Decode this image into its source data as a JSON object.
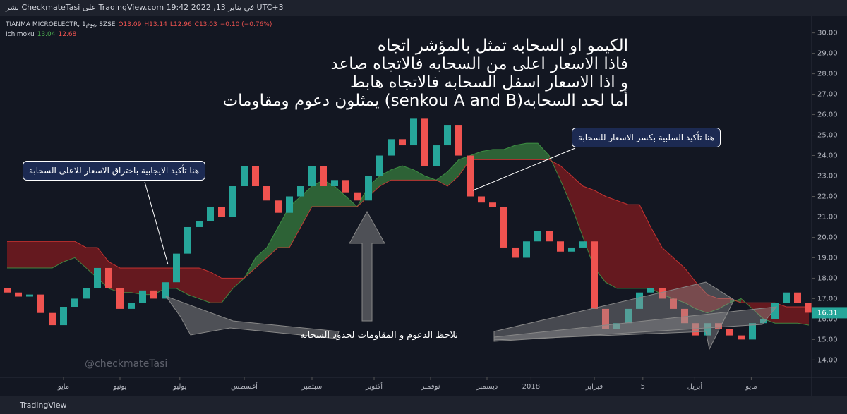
{
  "header": {
    "text": "نشر CheckmateTasi على TradingView.com في يناير 13, 2022 19:42 UTC+3"
  },
  "footer": {
    "brand": "TradingView"
  },
  "chart_data": {
    "type": "candlestick",
    "symbol": "TIANMA MICROELECTR, 1يوم, SZSE",
    "ohlc": [
      "O13.09",
      "H13.14",
      "L12.96",
      "C13.03",
      "−0.10 (−0.76%)"
    ],
    "indicator": "Ichimoku",
    "indicator_values": [
      "13.04",
      "12.68"
    ],
    "annotation": [
      "الكيمو او السحابه تمثل بالمؤشر اتجاه",
      "فاذا الاسعار اعلى من السحابه فالاتجاه صاعد",
      "و اذا الاسعار اسفل السحابه فالاتجاه هابط",
      "أما لحد السحابه(senkou A and B) يمثلون دعوم ومقاومات"
    ],
    "callouts": [
      "هنا تأكيد الايجابية باختراق الاسعار للاعلى السحابة",
      "هنا تأكيد السلبية بكسر الاسعار للسحابة",
      "نلاحظ الدعوم و المقاومات لحدود السحابه"
    ],
    "watermark": "@checkmateTasi",
    "up_color": "#26a69a",
    "down_color": "#ef5350",
    "candles": {
      "open": [
        17.5,
        17.3,
        17.1,
        17.2,
        16.3,
        15.7,
        16.6,
        17.0,
        17.5,
        18.5,
        17.5,
        16.5,
        16.8,
        17.4,
        17.0,
        17.8,
        19.2,
        20.5,
        20.8,
        21.5,
        21.0,
        22.5,
        23.5,
        22.5,
        21.8,
        21.2,
        22.0,
        22.5,
        23.5,
        22.5,
        22.8,
        22.2,
        21.8,
        23.0,
        24.0,
        24.8,
        24.5,
        25.8,
        23.5,
        24.5,
        25.5,
        24.0,
        22.0,
        21.7,
        21.5,
        19.5,
        19.0,
        19.8,
        20.3,
        19.8,
        19.3,
        19.5,
        19.8,
        16.5,
        15.5,
        15.8,
        16.5,
        17.3,
        17.5,
        17.0,
        16.5,
        15.8,
        15.2,
        15.8,
        15.5,
        15.2,
        15.0,
        15.8,
        16.0,
        16.8,
        17.3,
        16.8
      ],
      "close": [
        17.3,
        17.1,
        17.2,
        16.3,
        15.7,
        16.6,
        17.0,
        17.5,
        18.5,
        17.5,
        16.5,
        16.8,
        17.4,
        17.0,
        17.8,
        19.2,
        20.5,
        20.8,
        21.5,
        21.0,
        22.5,
        23.5,
        22.5,
        21.8,
        21.2,
        22.0,
        22.5,
        23.5,
        22.5,
        22.8,
        22.2,
        21.8,
        23.0,
        24.0,
        24.8,
        24.5,
        25.8,
        23.5,
        24.5,
        25.5,
        24.0,
        22.0,
        21.7,
        21.5,
        19.5,
        19.0,
        19.8,
        20.3,
        19.8,
        19.3,
        19.5,
        19.8,
        16.5,
        15.5,
        15.8,
        16.5,
        17.3,
        17.5,
        17.0,
        16.5,
        15.8,
        15.2,
        15.8,
        15.5,
        15.2,
        15.0,
        15.8,
        16.0,
        16.8,
        17.3,
        16.8,
        16.31
      ]
    },
    "span_a": {
      "color": "#43a047",
      "values": [
        18.5,
        18.5,
        18.5,
        18.5,
        18.5,
        18.8,
        19.0,
        18.5,
        18.0,
        17.5,
        17.3,
        17.3,
        17.2,
        17.2,
        17.5,
        17.5,
        17.2,
        17.0,
        16.8,
        16.8,
        17.5,
        18.0,
        19.0,
        19.5,
        20.5,
        21.5,
        22.0,
        22.5,
        22.8,
        22.5,
        22.0,
        21.5,
        22.5,
        23.0,
        23.3,
        23.5,
        23.3,
        23.0,
        22.8,
        23.2,
        23.8,
        24.0,
        24.2,
        24.3,
        24.3,
        24.5,
        24.6,
        24.6,
        24.0,
        22.8,
        21.5,
        20.0,
        18.5,
        17.8,
        17.5,
        17.5,
        17.5,
        17.5,
        17.2,
        17.0,
        16.8,
        16.5,
        16.3,
        16.5,
        16.8,
        17.0,
        16.5,
        16.0,
        15.8,
        15.8,
        15.8,
        15.7
      ]
    },
    "span_b": {
      "color": "#e53935",
      "values": [
        19.8,
        19.8,
        19.8,
        19.8,
        19.8,
        19.8,
        19.8,
        19.5,
        19.5,
        18.8,
        18.5,
        18.5,
        18.5,
        18.5,
        18.5,
        18.5,
        18.5,
        18.5,
        18.3,
        18.0,
        18.0,
        18.0,
        18.5,
        19.0,
        19.5,
        19.5,
        20.5,
        21.5,
        21.5,
        21.5,
        21.5,
        21.5,
        22.0,
        22.5,
        22.8,
        22.8,
        22.8,
        22.8,
        22.8,
        22.5,
        23.0,
        23.8,
        23.8,
        23.8,
        23.8,
        23.8,
        23.8,
        23.8,
        23.8,
        23.5,
        23.0,
        22.5,
        22.3,
        22.0,
        21.8,
        21.6,
        21.6,
        20.5,
        19.5,
        19.0,
        18.5,
        17.8,
        17.2,
        17.0,
        17.0,
        16.8,
        16.8,
        16.8,
        16.8,
        16.6,
        16.6,
        16.6
      ]
    },
    "last_price": 16.31,
    "xlim": [
      -0.625,
      71.25
    ],
    "xticks": [
      {
        "value": 5,
        "label": "مايو"
      },
      {
        "value": 10,
        "label": "يونيو"
      },
      {
        "value": 15.3,
        "label": "يوليو"
      },
      {
        "value": 21,
        "label": "أغسطس"
      },
      {
        "value": 27,
        "label": "سبتمبر"
      },
      {
        "value": 32.5,
        "label": "أكتوبر"
      },
      {
        "value": 37.5,
        "label": "نوفمبر"
      },
      {
        "value": 42.5,
        "label": "ديسمبر"
      },
      {
        "value": 46.4,
        "label": "2018"
      },
      {
        "value": 52,
        "label": "فبراير"
      },
      {
        "value": 56.3,
        "label": "5"
      },
      {
        "value": 60.9,
        "label": "أبريل"
      },
      {
        "value": 65.9,
        "label": "مايو"
      }
    ],
    "ylim": [
      13.15,
      30.85
    ],
    "yticks": [
      {
        "value": 14,
        "label": "14.00"
      },
      {
        "value": 15,
        "label": "15.00"
      },
      {
        "value": 16,
        "label": "16.00"
      },
      {
        "value": 17,
        "label": "17.00"
      },
      {
        "value": 18,
        "label": "18.00"
      },
      {
        "value": 19,
        "label": "19.00"
      },
      {
        "value": 20,
        "label": "20.00"
      },
      {
        "value": 21,
        "label": "21.00"
      },
      {
        "value": 22,
        "label": "22.00"
      },
      {
        "value": 23,
        "label": "23.00"
      },
      {
        "value": 24,
        "label": "24.00"
      },
      {
        "value": 25,
        "label": "25.00"
      },
      {
        "value": 26,
        "label": "26.00"
      },
      {
        "value": 27,
        "label": "27.00"
      },
      {
        "value": 28,
        "label": "28.00"
      },
      {
        "value": 29,
        "label": "29.00"
      },
      {
        "value": 30,
        "label": "30.00"
      }
    ]
  }
}
